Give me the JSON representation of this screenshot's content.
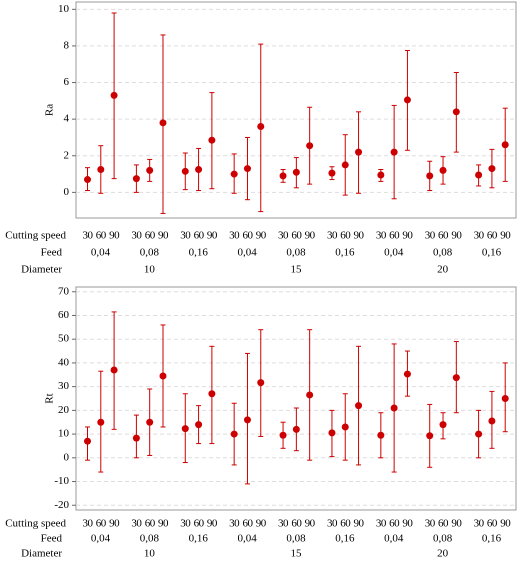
{
  "chart_data": [
    {
      "type": "interval",
      "ylabel": "Ra",
      "ylim": [
        -1.4,
        10.4
      ],
      "yticks": [
        0,
        2,
        4,
        6,
        8,
        10
      ],
      "grid": true,
      "color": "#cc0000",
      "level_names": [
        "Cutting speed",
        "Feed",
        "Diameter"
      ],
      "speeds": [
        "30",
        "60",
        "90",
        "30",
        "60",
        "90",
        "30",
        "60",
        "90",
        "30",
        "60",
        "90",
        "30",
        "60",
        "90",
        "30",
        "60",
        "90",
        "30",
        "60",
        "90",
        "30",
        "60",
        "90",
        "30",
        "60",
        "90"
      ],
      "feeds": [
        "0,04",
        "0,08",
        "0,16",
        "0,04",
        "0,08",
        "0,16",
        "0,04",
        "0,08",
        "0,16"
      ],
      "diameters": [
        "10",
        "15",
        "20"
      ],
      "values": [
        0.7,
        1.25,
        5.3,
        0.75,
        1.2,
        3.8,
        1.15,
        1.25,
        2.85,
        1.0,
        1.3,
        3.6,
        0.9,
        1.1,
        2.55,
        1.05,
        1.5,
        2.2,
        0.95,
        2.2,
        5.05,
        0.9,
        1.2,
        4.4,
        0.95,
        1.3,
        2.6
      ],
      "lower": [
        0.1,
        -0.05,
        0.75,
        0,
        0.6,
        -1.15,
        0.15,
        0.1,
        0.2,
        -0.05,
        -0.4,
        -1.05,
        0.55,
        0.25,
        0.45,
        0.7,
        -0.15,
        -0.05,
        0.6,
        -0.35,
        2.3,
        0.1,
        0.45,
        2.2,
        0.35,
        0.25,
        0.6
      ],
      "upper": [
        1.35,
        2.55,
        9.8,
        1.5,
        1.8,
        8.6,
        2.15,
        2.4,
        5.45,
        2.1,
        3.0,
        8.1,
        1.25,
        1.9,
        4.65,
        1.4,
        3.15,
        4.4,
        1.25,
        4.75,
        7.75,
        1.7,
        1.95,
        6.55,
        1.5,
        2.35,
        4.6
      ]
    },
    {
      "type": "interval",
      "ylabel": "Rt",
      "ylim": [
        -22,
        72
      ],
      "yticks": [
        -20,
        -10,
        0,
        10,
        20,
        30,
        40,
        50,
        60,
        70
      ],
      "grid": true,
      "color": "#cc0000",
      "level_names": [
        "Cutting speed",
        "Feed",
        "Diameter"
      ],
      "speeds": [
        "30",
        "60",
        "90",
        "30",
        "60",
        "90",
        "30",
        "60",
        "90",
        "30",
        "60",
        "90",
        "30",
        "60",
        "90",
        "30",
        "60",
        "90",
        "30",
        "60",
        "90",
        "30",
        "60",
        "90",
        "30",
        "60",
        "90"
      ],
      "feeds": [
        "0,04",
        "0,08",
        "0,16",
        "0,04",
        "0,08",
        "0,16",
        "0,04",
        "0,08",
        "0,16"
      ],
      "diameters": [
        "10",
        "15",
        "20"
      ],
      "values": [
        7,
        15,
        37,
        8.3,
        15,
        34.5,
        12.3,
        14,
        27,
        10,
        16,
        31.7,
        9.5,
        12,
        26.5,
        10.5,
        13,
        22,
        9.5,
        21,
        35.3,
        9.3,
        14,
        33.8,
        10,
        15.5,
        25
      ],
      "lower": [
        -1,
        -6,
        12,
        0,
        1,
        13,
        -2,
        6,
        6,
        -3,
        -11,
        9,
        4,
        3,
        -1,
        0.5,
        -1,
        -3,
        0,
        -6,
        26,
        -4,
        8,
        19,
        0,
        4,
        11
      ],
      "upper": [
        13,
        36.5,
        61.5,
        18,
        29,
        56,
        27,
        22,
        47,
        23,
        44,
        54,
        15,
        21,
        54,
        20,
        27,
        47,
        19,
        48,
        45,
        22.5,
        19,
        49,
        20,
        28,
        40
      ]
    }
  ]
}
